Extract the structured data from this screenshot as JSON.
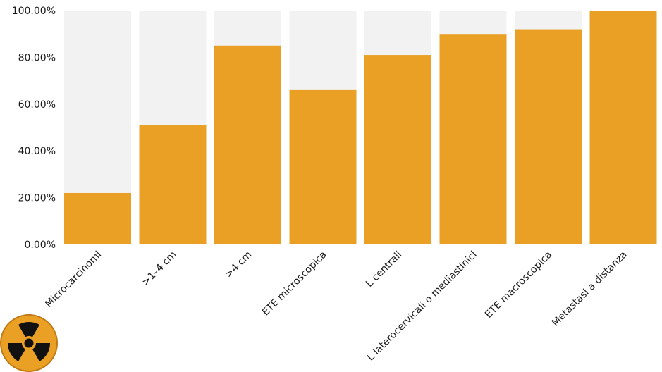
{
  "chart_data": {
    "type": "bar",
    "categories": [
      "Microcarcinomi",
      ">1–4 cm",
      ">4 cm",
      "ETE microscopica",
      "L centrali",
      "L laterocervicali o mediastinici",
      "ETE macroscopica",
      "Metastasi a distanza"
    ],
    "values": [
      22,
      51,
      85,
      66,
      81,
      90,
      92,
      100
    ],
    "ylim": [
      0,
      100
    ],
    "yticks": [
      "0.00%",
      "20.00%",
      "40.00%",
      "60.00%",
      "80.00%",
      "100.00%"
    ],
    "bar_color": "#e9a025",
    "background_bar_color": "#f2f2f2",
    "title": "",
    "xlabel": "",
    "ylabel": "",
    "grid": false,
    "legend": "none"
  },
  "logo": {
    "icon": "radiation-icon",
    "colors": [
      "#e9a025",
      "#111111"
    ]
  }
}
